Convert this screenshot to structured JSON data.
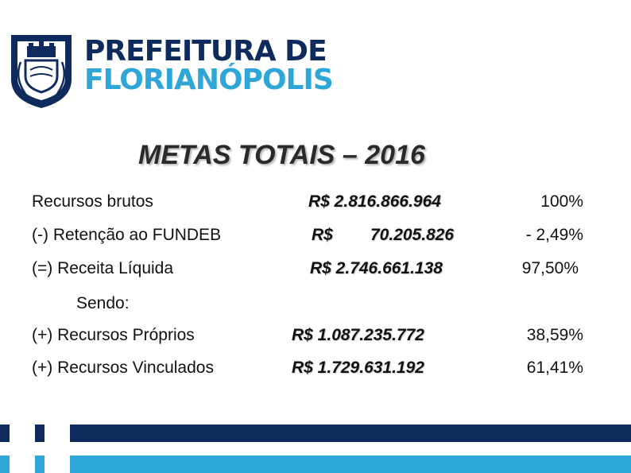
{
  "brand": {
    "line1": "PREFEITURA DE",
    "line2": "FLORIANÓPOLIS",
    "colors": {
      "navy": "#0f2a5c",
      "cyan": "#2fa6d8"
    }
  },
  "title": "METAS TOTAIS – 2016",
  "rows_top": [
    {
      "label": "Recursos brutos",
      "value": "R$ 2.816.866.964",
      "percent": "100%"
    },
    {
      "label": "(-) Retenção ao FUNDEB",
      "currency": "R$",
      "amount": "70.205.826",
      "percent": "- 2,49%"
    },
    {
      "label": "(=) Receita Líquida",
      "value": "R$ 2.746.661.138",
      "percent": "97,50%"
    }
  ],
  "sendo": "Sendo:",
  "rows_bottom": [
    {
      "label": "(+) Recursos Próprios",
      "value": "R$  1.087.235.772",
      "percent": "38,59%"
    },
    {
      "label": "(+) Recursos Vinculados",
      "value": "R$  1.729.631.192",
      "percent": "61,41%"
    }
  ]
}
